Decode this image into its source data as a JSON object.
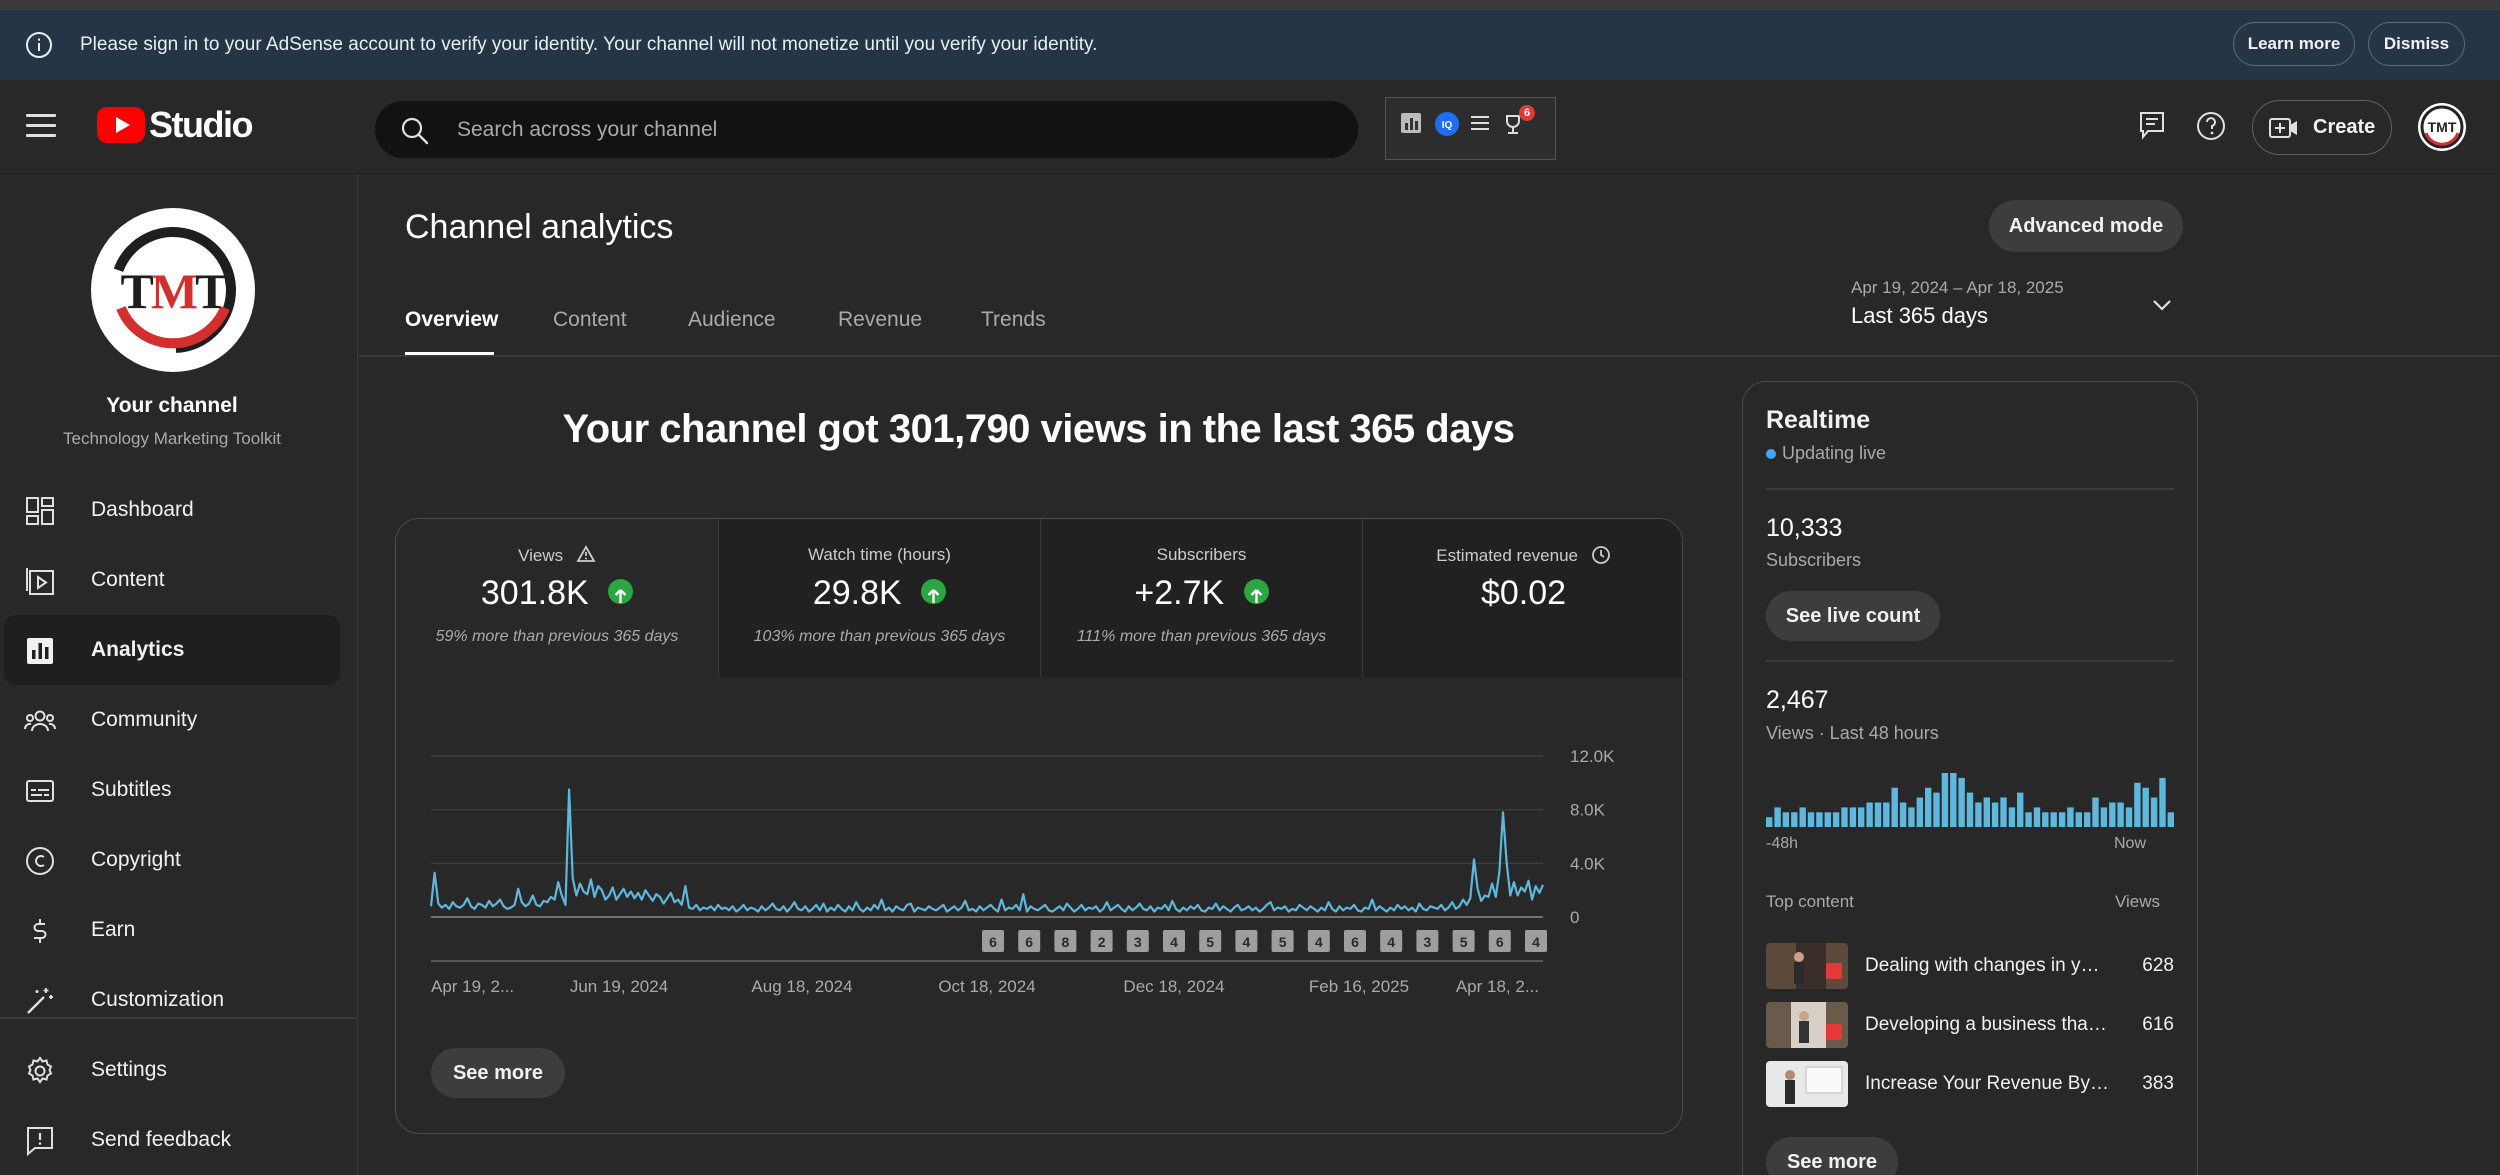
{
  "banner": {
    "message": "Please sign in to your AdSense account to verify your identity. Your channel will not monetize until you verify your identity.",
    "learn_more": "Learn more",
    "dismiss": "Dismiss"
  },
  "header": {
    "logo_text": "Studio",
    "search_placeholder": "Search across your channel",
    "notification_count": "6",
    "create_label": "Create"
  },
  "sidebar": {
    "channel_name": "Your channel",
    "channel_subtitle": "Technology Marketing Toolkit",
    "items": [
      {
        "label": "Dashboard",
        "icon": "dashboard-icon"
      },
      {
        "label": "Content",
        "icon": "content-icon"
      },
      {
        "label": "Analytics",
        "icon": "analytics-icon",
        "active": true
      },
      {
        "label": "Community",
        "icon": "community-icon"
      },
      {
        "label": "Subtitles",
        "icon": "subtitles-icon"
      },
      {
        "label": "Copyright",
        "icon": "copyright-icon"
      },
      {
        "label": "Earn",
        "icon": "earn-icon"
      },
      {
        "label": "Customization",
        "icon": "customization-icon"
      }
    ],
    "settings": "Settings",
    "send_feedback": "Send feedback"
  },
  "main": {
    "title": "Channel analytics",
    "advanced_mode": "Advanced mode",
    "tabs": [
      "Overview",
      "Content",
      "Audience",
      "Revenue",
      "Trends"
    ],
    "date_range": "Apr 19, 2024 – Apr 18, 2025",
    "date_label": "Last 365 days",
    "headline": "Your channel got 301,790 views in the last 365 days",
    "metrics": [
      {
        "label": "Views",
        "value": "301.8K",
        "note": "59% more than previous 365 days",
        "trend": "up"
      },
      {
        "label": "Watch time (hours)",
        "value": "29.8K",
        "note": "103% more than previous 365 days",
        "trend": "up"
      },
      {
        "label": "Subscribers",
        "value": "+2.7K",
        "note": "111% more than previous 365 days",
        "trend": "up"
      },
      {
        "label": "Estimated revenue",
        "value": "$0.02",
        "note": ""
      }
    ],
    "see_more": "See more"
  },
  "chart_data": {
    "type": "line",
    "ylim": [
      0,
      12000
    ],
    "yticks": [
      "12.0K",
      "8.0K",
      "4.0K",
      "0"
    ],
    "xticks": [
      "Apr 19, 2...",
      "Jun 19, 2024",
      "Aug 18, 2024",
      "Oct 18, 2024",
      "Dec 18, 2024",
      "Feb 16, 2025",
      "Apr 18, 2..."
    ],
    "series": [
      {
        "values": [
          800,
          3300,
          1000,
          700,
          900,
          600,
          1100,
          800,
          700,
          900,
          1400,
          800,
          600,
          1000,
          900,
          700,
          1200,
          800,
          1000,
          1300,
          800,
          600,
          700,
          900,
          2100,
          1100,
          800,
          1000,
          1600,
          900,
          800,
          1200,
          1100,
          1500,
          1300,
          2600,
          1600,
          900,
          9500,
          2900,
          1600,
          2500,
          1900,
          1700,
          2800,
          1500,
          2300,
          2000,
          1300,
          1600,
          2200,
          1300,
          1700,
          2100,
          1500,
          1900,
          1400,
          1800,
          1300,
          2000,
          1600,
          1200,
          1700,
          1500,
          1000,
          1400,
          1800,
          1100,
          1300,
          900,
          2300,
          700,
          600,
          900,
          500,
          700,
          600,
          800,
          500,
          900,
          600,
          700,
          500,
          800,
          400,
          600,
          900,
          500,
          700,
          600,
          400,
          800,
          500,
          700,
          1000,
          600,
          500,
          800,
          400,
          700,
          1100,
          600,
          500,
          800,
          400,
          600,
          900,
          500,
          1000,
          400,
          700,
          500,
          900,
          600,
          400,
          800,
          500,
          1100,
          600,
          400,
          700,
          500,
          900,
          600,
          1300,
          500,
          700,
          400,
          800,
          600,
          500,
          900,
          1000,
          400,
          700,
          600,
          500,
          800,
          600,
          500,
          700,
          900,
          400,
          600,
          800,
          500,
          700,
          1200,
          500,
          600,
          400,
          800,
          500,
          700,
          900,
          600,
          400,
          1300,
          500,
          700,
          600,
          900,
          500,
          1700,
          400,
          800,
          600,
          500,
          700,
          900,
          500,
          400,
          600,
          800,
          500,
          1000,
          700,
          400,
          600,
          900,
          500,
          700,
          600,
          800,
          400,
          600,
          1100,
          500,
          700,
          900,
          600,
          400,
          800,
          500,
          700,
          1000,
          600,
          500,
          800,
          400,
          700,
          600,
          900,
          500,
          1200,
          600,
          400,
          700,
          500,
          800,
          600,
          900,
          500,
          400,
          700,
          600,
          1000,
          500,
          800,
          600,
          400,
          700,
          900,
          500,
          600,
          800,
          500,
          700,
          400,
          600,
          900,
          1100,
          500,
          700,
          600,
          800,
          400,
          600,
          500,
          900,
          700,
          500,
          800,
          600,
          400,
          700,
          500,
          1100,
          600,
          400,
          800,
          500,
          700,
          600,
          900,
          500,
          400,
          700,
          600,
          1300,
          500,
          800,
          600,
          400,
          700,
          500,
          900,
          600,
          800,
          500,
          700,
          400,
          1000,
          600,
          500,
          800,
          700,
          600,
          900,
          500,
          700,
          1100,
          600,
          800,
          1300,
          900,
          1400,
          4300,
          2100,
          1200,
          1600,
          1500,
          2500,
          1500,
          3400,
          7800,
          4000,
          1600,
          2600,
          1600,
          2200,
          1900,
          2700,
          1300,
          2300,
          1800,
          2400
        ]
      }
    ],
    "annotations": [
      "6",
      "6",
      "8",
      "2",
      "3",
      "4",
      "5",
      "4",
      "5",
      "4",
      "6",
      "4",
      "3",
      "5",
      "6",
      "4"
    ]
  },
  "realtime": {
    "title": "Realtime",
    "live": "Updating live",
    "subscribers_value": "10,333",
    "subscribers_label": "Subscribers",
    "see_live_count": "See live count",
    "views_value": "2,467",
    "views_label": "Views · Last 48 hours",
    "bars": [
      2,
      4,
      3,
      3,
      4,
      3,
      3,
      3,
      3,
      4,
      4,
      4,
      5,
      5,
      5,
      8,
      5,
      4,
      6,
      8,
      7,
      11,
      11,
      10,
      7,
      5,
      6,
      5,
      6,
      4,
      7,
      3,
      4,
      3,
      3,
      3,
      4,
      3,
      3,
      6,
      4,
      5,
      5,
      4,
      9,
      8,
      6,
      10,
      3
    ],
    "axis_left": "-48h",
    "axis_right": "Now",
    "top_content_label": "Top content",
    "views_col": "Views",
    "top_content": [
      {
        "title": "Dealing with changes in your business",
        "views": "628"
      },
      {
        "title": "Developing a business that scales",
        "views": "616"
      },
      {
        "title": "Increase Your Revenue By Focusing",
        "views": "383"
      }
    ],
    "see_more": "See more"
  },
  "colors": {
    "accent": "#3ea6ff",
    "chart_line": "#5eb7dd",
    "up_green": "#2ba640",
    "banner_bg": "#263545",
    "brand_red": "#ff0000"
  }
}
